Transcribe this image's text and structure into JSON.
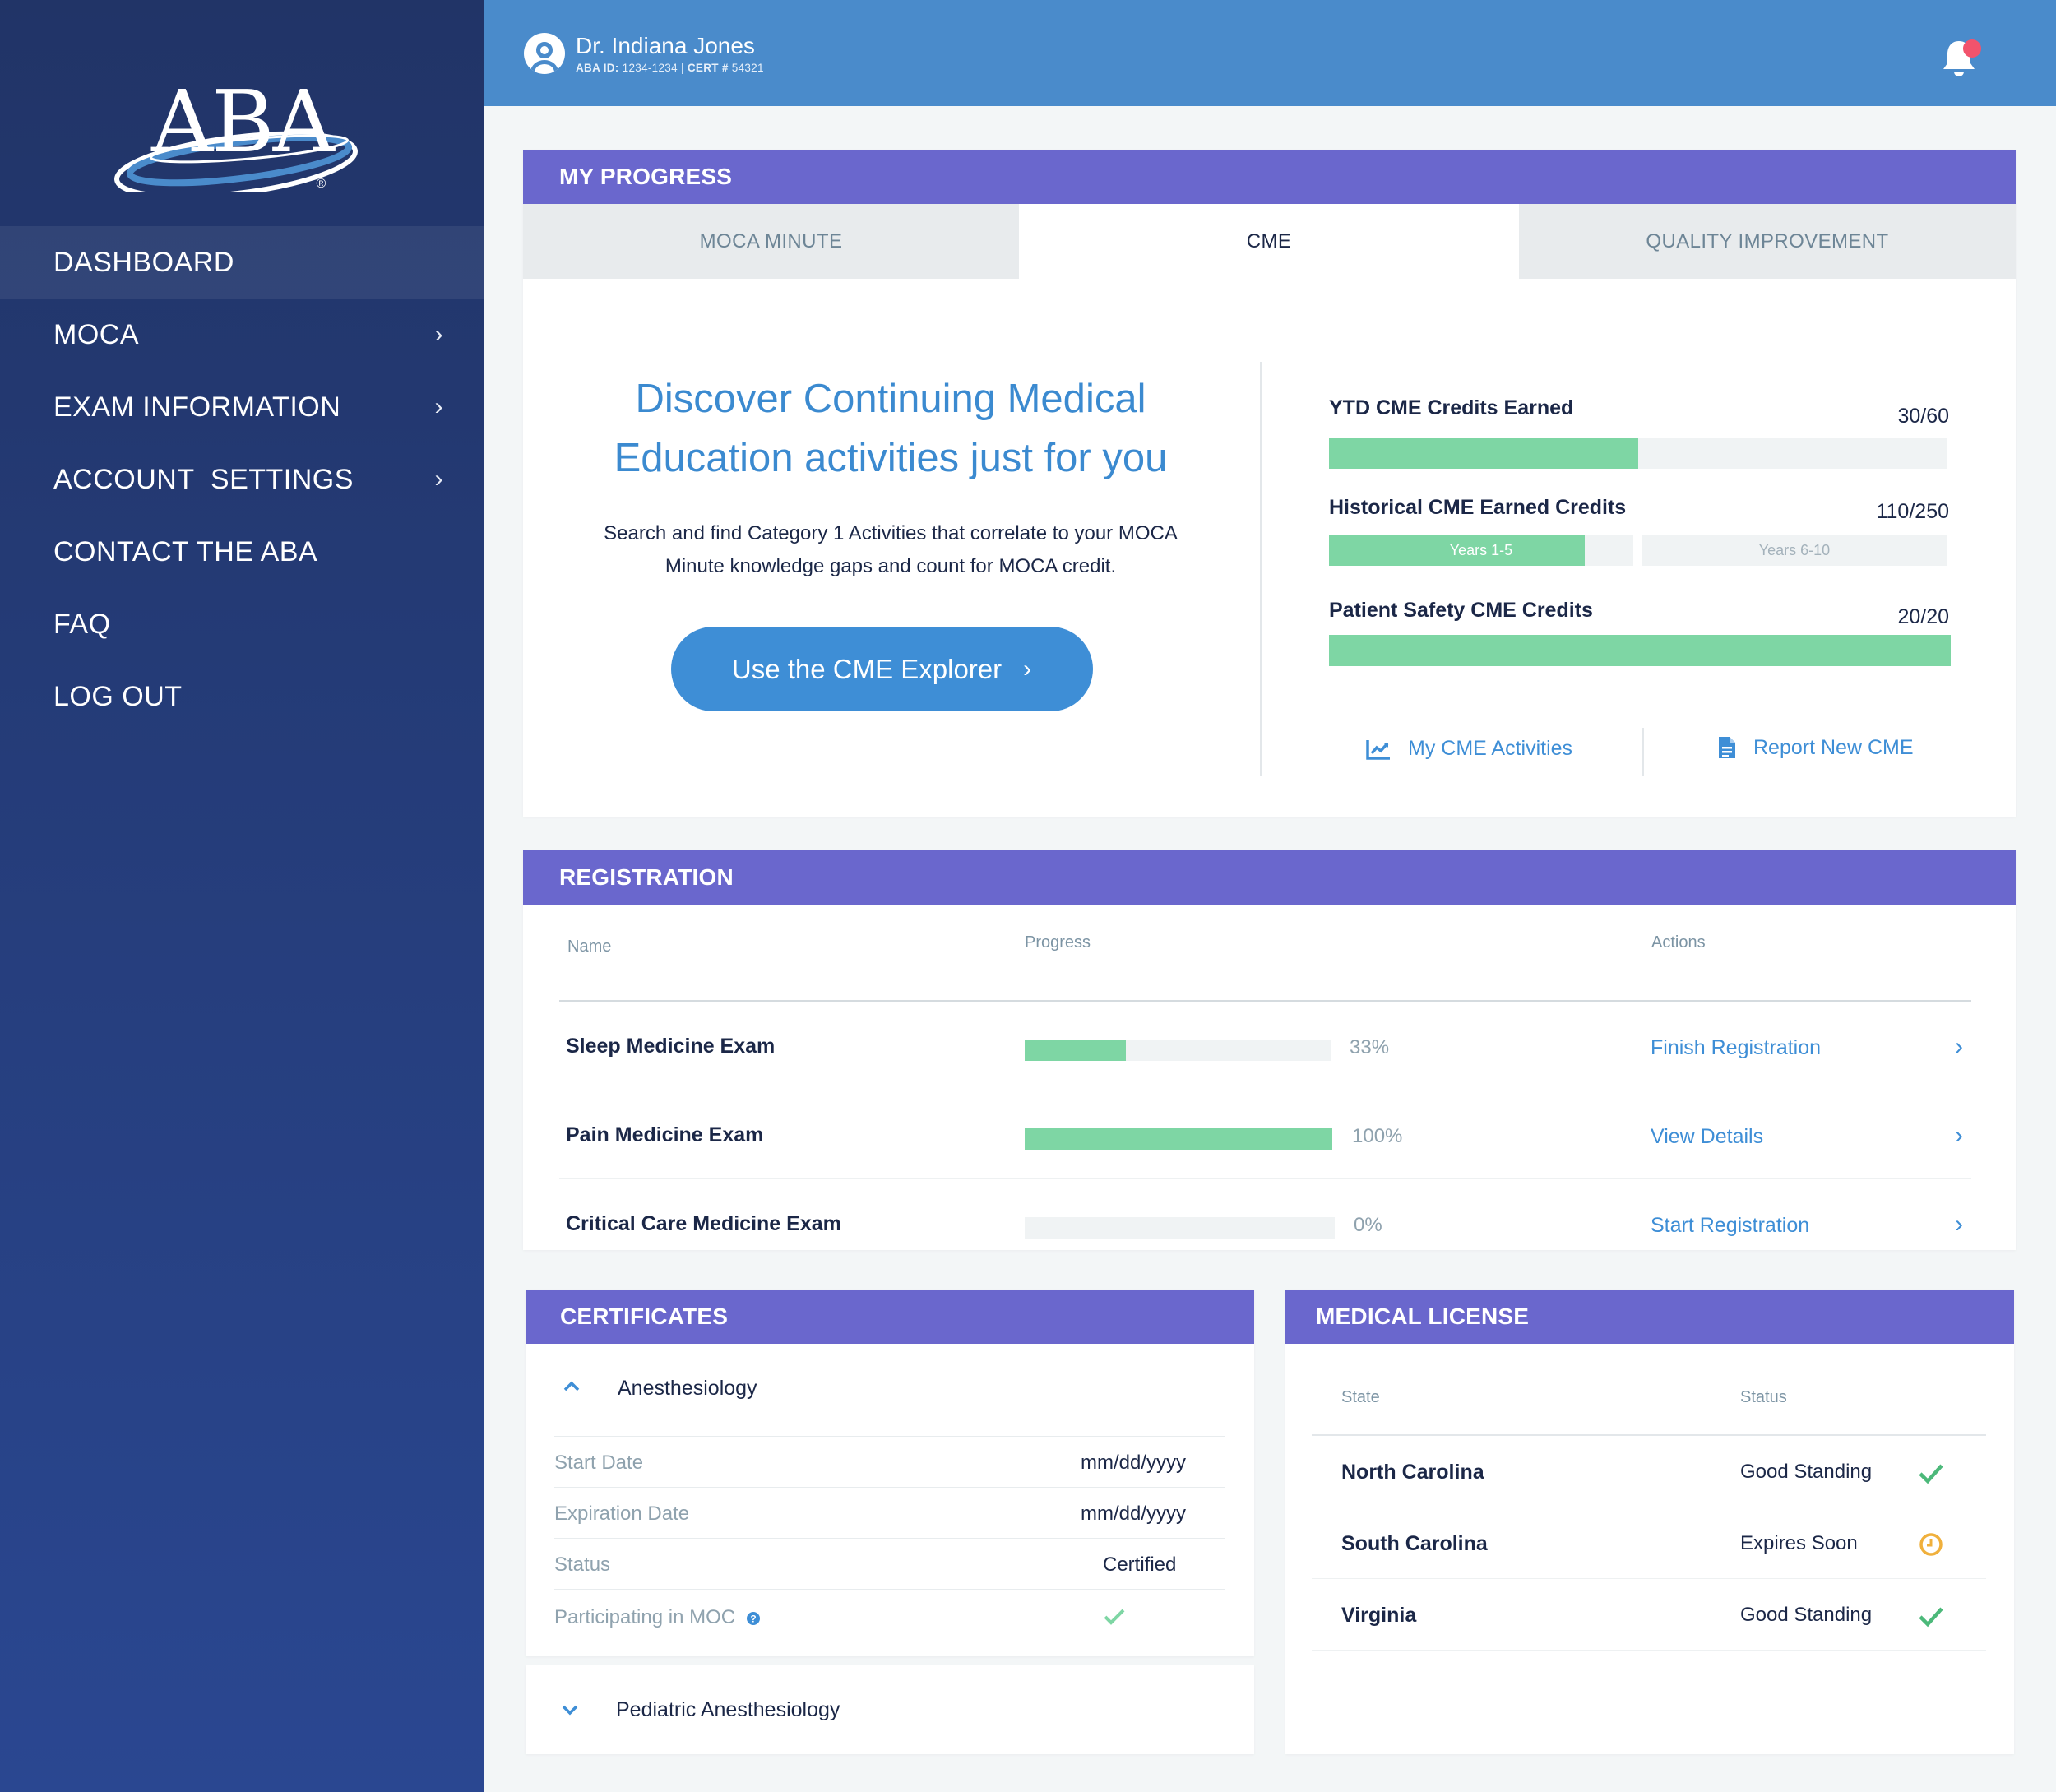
{
  "brand": {
    "logo_text": "ABA",
    "registered": "®"
  },
  "sidebar": {
    "items": [
      {
        "label": "DASHBOARD",
        "has_submenu": false
      },
      {
        "label": "MOCA",
        "has_submenu": true
      },
      {
        "label": "EXAM INFORMATION",
        "has_submenu": true
      },
      {
        "label": "ACCOUNT  SETTINGS",
        "has_submenu": true
      },
      {
        "label": "CONTACT THE ABA",
        "has_submenu": false
      },
      {
        "label": "FAQ",
        "has_submenu": false
      },
      {
        "label": "LOG OUT",
        "has_submenu": false
      }
    ],
    "active": "DASHBOARD"
  },
  "header": {
    "user_name": "Dr. Indiana Jones",
    "aba_id_label": "ABA ID:",
    "aba_id": "1234-1234",
    "cert_label": "CERT #",
    "cert_number": "54321",
    "notification_icon": "bell-icon",
    "has_unread": true
  },
  "progress": {
    "title": "MY PROGRESS",
    "tabs": [
      "MOCA MINUTE",
      "CME",
      "QUALITY IMPROVEMENT"
    ],
    "active_tab": "CME",
    "cme": {
      "headline_1": "Discover Continuing Medical",
      "headline_2": "Education activities just for you",
      "desc_1": "Search and find Category 1 Activities that correlate to your MOCA",
      "desc_2": "Minute knowledge gaps and count for MOCA credit.",
      "button_label": "Use the CME Explorer",
      "ytd": {
        "label": "YTD CME Credits Earned",
        "value_text": "30/60",
        "earned": 30,
        "total": 60
      },
      "historical": {
        "label": "Historical CME Earned Credits",
        "value_text": "110/250",
        "segments": [
          {
            "label": "Years 1-5",
            "fill": 0.84
          },
          {
            "label": "Years 6-10",
            "fill": 0
          }
        ]
      },
      "patient_safety": {
        "label": "Patient Safety CME Credits",
        "value_text": "20/20",
        "earned": 20,
        "total": 20
      },
      "link_activities": "My CME Activities",
      "link_report": "Report New CME"
    }
  },
  "registration": {
    "title": "REGISTRATION",
    "columns": [
      "Name",
      "Progress",
      "Actions"
    ],
    "rows": [
      {
        "name": "Sleep Medicine Exam",
        "progress": 0.33,
        "progress_text": "33%",
        "action": "Finish Registration"
      },
      {
        "name": "Pain Medicine Exam",
        "progress": 1.0,
        "progress_text": "100%",
        "action": "View Details"
      },
      {
        "name": "Critical Care Medicine Exam",
        "progress": 0,
        "progress_text": "0%",
        "action": "Start Registration"
      }
    ]
  },
  "certificates": {
    "title": "CERTIFICATES",
    "expanded": {
      "name": "Anesthesiology",
      "fields": [
        {
          "label": "Start Date",
          "value": "mm/dd/yyyy"
        },
        {
          "label": "Expiration Date",
          "value": "mm/dd/yyyy"
        },
        {
          "label": "Status",
          "value": "Certified"
        },
        {
          "label": "Participating in MOC",
          "value": ""
        }
      ]
    },
    "collapsed": {
      "name": "Pediatric Anesthesiology"
    }
  },
  "medical_license": {
    "title": "MEDICAL LICENSE",
    "columns": [
      "State",
      "Status"
    ],
    "rows": [
      {
        "state": "North Carolina",
        "status": "Good Standing",
        "icon": "check-icon",
        "color": "#4cb97a"
      },
      {
        "state": "South Carolina",
        "status": "Expires Soon",
        "icon": "clock-icon",
        "color": "#f0b03c"
      },
      {
        "state": "Virginia",
        "status": "Good Standing",
        "icon": "check-icon",
        "color": "#4cb97a"
      }
    ]
  },
  "colors": {
    "sidebar_top": "#213467",
    "sidebar_bottom": "#2a4791",
    "topbar": "#4a8bcb",
    "section_header": "#6a67cd",
    "accent_blue": "#3e8ed6",
    "progress_green": "#7ed6a4"
  }
}
